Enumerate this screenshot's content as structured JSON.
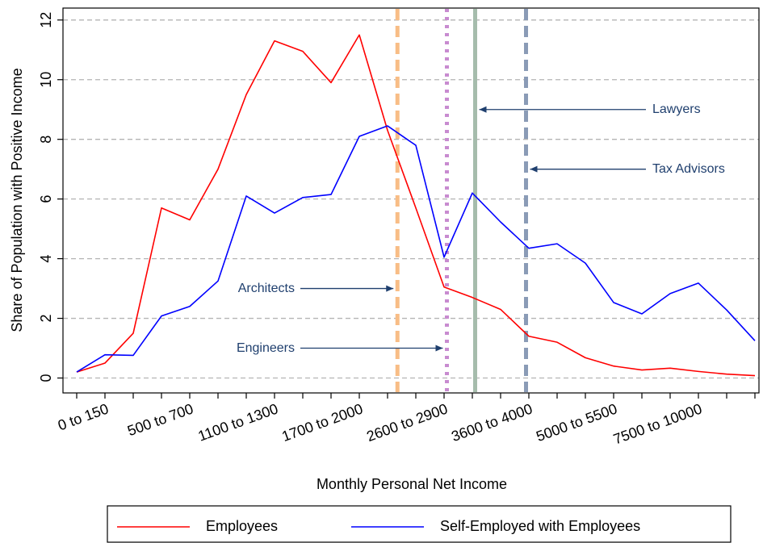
{
  "chart_data": {
    "type": "line",
    "x_label": "Monthly Personal Net Income",
    "y_label": "Share of Population with Positive Income",
    "categories": [
      null,
      "0 to 150",
      null,
      null,
      "500 to 700",
      null,
      null,
      "1100 to 1300",
      null,
      null,
      "1700 to 2000",
      null,
      null,
      "2600 to 2900",
      null,
      null,
      "3600 to 4000",
      null,
      null,
      "5000 to 5500",
      null,
      null,
      "7500 to 10000",
      null,
      null
    ],
    "series": [
      {
        "name": "Employees",
        "color": "#ff0000",
        "values": [
          0.2,
          0.5,
          1.5,
          5.7,
          5.3,
          7.0,
          9.5,
          11.3,
          10.95,
          9.9,
          11.5,
          8.3,
          5.7,
          3.05,
          2.7,
          2.3,
          1.4,
          1.2,
          0.68,
          0.4,
          0.27,
          0.33,
          0.22,
          0.13,
          0.08
        ]
      },
      {
        "name": "Self-Employed with Employees",
        "color": "#0000ff",
        "values": [
          0.2,
          0.78,
          0.76,
          2.08,
          2.4,
          3.25,
          6.1,
          5.53,
          6.05,
          6.15,
          8.1,
          8.45,
          7.8,
          4.05,
          6.2,
          5.23,
          4.35,
          4.5,
          3.85,
          2.53,
          2.15,
          2.83,
          3.18,
          2.28,
          1.25
        ]
      }
    ],
    "reference_lines": [
      {
        "text": "Architects",
        "x": 11.35,
        "y": 3,
        "side": "left",
        "color": "#f8bd86",
        "style": "dashed"
      },
      {
        "text": "Engineers",
        "x": 13.1,
        "y": 1,
        "side": "left",
        "color": "#c88bd0",
        "style": "dotted"
      },
      {
        "text": "Lawyers",
        "x": 14.1,
        "y": 9,
        "side": "right",
        "color": "#a6bcac",
        "style": "solid"
      },
      {
        "text": "Tax Advisors",
        "x": 15.9,
        "y": 7,
        "side": "right",
        "color": "#8a9bb6",
        "style": "dashed"
      }
    ],
    "ylim": [
      -0.5,
      12.4
    ],
    "yticks": [
      0,
      2,
      4,
      6,
      8,
      10,
      12
    ],
    "grid": true,
    "legend": "bottom"
  }
}
